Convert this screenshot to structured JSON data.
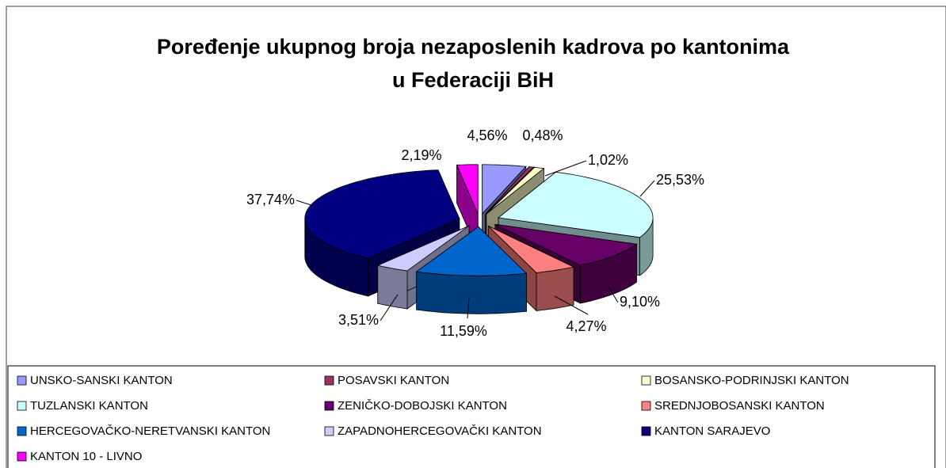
{
  "chart_data": {
    "type": "pie3d",
    "title": "Poređenje ukupnog broja nezaposlenih kadrova po kantonima u Federaciji BiH",
    "categories": [
      "UNSKO-SANSKI KANTON",
      "POSAVSKI KANTON",
      "BOSANSKO-PODRINJSKI KANTON",
      "TUZLANSKI KANTON",
      "ZENIČKO-DOBOJSKI KANTON",
      "SREDNJOBOSANSKI KANTON",
      "HERCEGOVAČKO-NERETVANSKI KANTON",
      "ZAPADNOHERCEGOVAČKI KANTON",
      "KANTON SARAJEVO",
      "KANTON 10 - LIVNO"
    ],
    "values": [
      4.56,
      0.48,
      1.02,
      25.53,
      9.1,
      4.27,
      11.59,
      3.51,
      37.74,
      2.19
    ],
    "value_labels": [
      "4,56%",
      "0,48%",
      "1,02%",
      "25,53%",
      "9,10%",
      "4,27%",
      "11,59%",
      "3,51%",
      "37,74%",
      "2,19%"
    ],
    "colors": [
      "#9999ff",
      "#993366",
      "#ffffcc",
      "#ccffff",
      "#660066",
      "#ff8080",
      "#0066cc",
      "#ccccff",
      "#000080",
      "#ff00ff"
    ],
    "legend": "bottom"
  }
}
